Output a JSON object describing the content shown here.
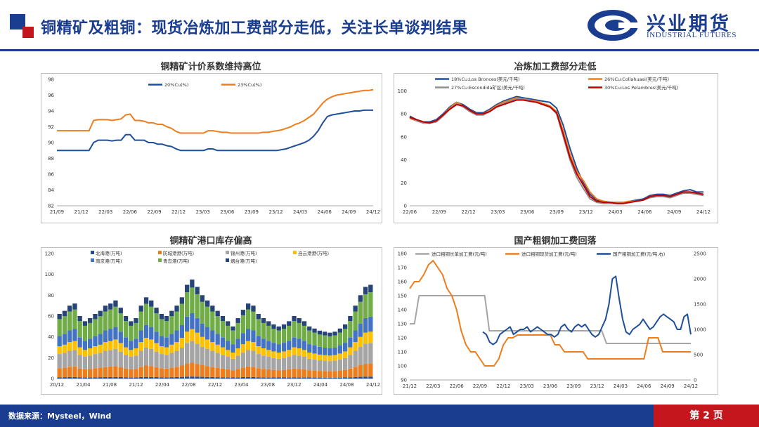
{
  "header": {
    "title": "铜精矿及粗铜：现货冶炼加工费部分走低，关注长单谈判结果",
    "logo_cn": "兴业期货",
    "logo_en": "INDUSTRIAL FUTURES"
  },
  "footer": {
    "source": "数据来源：Mysteel，Wind",
    "page": "第 2 页"
  },
  "colors": {
    "brand_blue": "#1a3d8f",
    "brand_red": "#c4161c"
  },
  "chart_data": [
    {
      "id": "c1",
      "type": "line",
      "title": "铜精矿计价系数维持高位",
      "xlabel": "",
      "ylabel": "",
      "ylim": [
        82,
        98
      ],
      "yticks": [
        82,
        84,
        86,
        88,
        90,
        92,
        94,
        96,
        98
      ],
      "xticks": [
        "21/09",
        "21/12",
        "22/03",
        "22/06",
        "22/09",
        "22/12",
        "23/03",
        "23/06",
        "23/09",
        "23/12",
        "24/03",
        "24/06",
        "24/09",
        "24/12"
      ],
      "legend": "top-center",
      "series": [
        {
          "name": "20%Cu(%)",
          "color": "#1f4e9a",
          "values": [
            89.0,
            89.0,
            89.0,
            89.0,
            89.0,
            89.0,
            89.0,
            89.0,
            90.0,
            90.3,
            90.3,
            90.3,
            90.2,
            90.3,
            90.3,
            91.0,
            91.0,
            90.3,
            90.3,
            90.3,
            90.0,
            90.0,
            89.8,
            89.8,
            89.6,
            89.5,
            89.2,
            89.0,
            89.0,
            89.0,
            89.0,
            89.0,
            89.0,
            89.2,
            89.2,
            89.0,
            89.0,
            89.0,
            89.0,
            89.0,
            89.0,
            89.0,
            89.0,
            89.0,
            89.0,
            89.0,
            89.0,
            89.0,
            89.0,
            89.1,
            89.2,
            89.4,
            89.6,
            89.8,
            90.0,
            90.3,
            90.8,
            91.5,
            92.5,
            93.3,
            93.5,
            93.6,
            93.7,
            93.8,
            93.9,
            94.0,
            94.0,
            94.1,
            94.1,
            94.1
          ]
        },
        {
          "name": "23%Cu(%)",
          "color": "#ee7d1e",
          "values": [
            91.5,
            91.5,
            91.5,
            91.5,
            91.5,
            91.5,
            91.5,
            91.5,
            92.8,
            92.9,
            92.9,
            92.9,
            92.8,
            92.9,
            93.0,
            93.5,
            93.6,
            92.8,
            92.8,
            92.7,
            92.5,
            92.5,
            92.3,
            92.3,
            92.0,
            91.8,
            91.4,
            91.2,
            91.2,
            91.2,
            91.2,
            91.2,
            91.2,
            91.5,
            91.5,
            91.4,
            91.3,
            91.3,
            91.2,
            91.2,
            91.2,
            91.2,
            91.2,
            91.2,
            91.2,
            91.3,
            91.3,
            91.4,
            91.5,
            91.6,
            91.8,
            92.0,
            92.3,
            92.5,
            92.8,
            93.2,
            93.6,
            94.3,
            95.0,
            95.5,
            95.8,
            96.0,
            96.1,
            96.2,
            96.3,
            96.4,
            96.5,
            96.6,
            96.6,
            96.7
          ]
        }
      ]
    },
    {
      "id": "c2",
      "type": "line",
      "title": "冶炼加工费部分走低",
      "xlabel": "",
      "ylabel": "",
      "ylim": [
        0,
        110
      ],
      "yticks": [
        0,
        20,
        40,
        60,
        80,
        100
      ],
      "xticks": [
        "22/06",
        "22/09",
        "22/12",
        "23/03",
        "23/06",
        "23/09",
        "23/12",
        "24/03",
        "24/06",
        "24/09",
        "24/12"
      ],
      "legend": "top",
      "series": [
        {
          "name": "18%Cu:Los Bronces(美元/千吨)",
          "color": "#1f4e9a",
          "values": [
            78,
            75,
            73,
            73,
            75,
            80,
            86,
            90,
            88,
            84,
            81,
            81,
            84,
            88,
            91,
            93,
            95,
            94,
            93,
            92,
            91,
            90,
            85,
            70,
            50,
            33,
            20,
            10,
            5,
            4,
            3,
            3,
            3,
            4,
            5,
            6,
            9,
            10,
            10,
            9,
            11,
            13,
            14,
            12,
            12
          ]
        },
        {
          "name": "26%Cu:Collahuasi(美元/千吨)",
          "color": "#ee7d1e",
          "values": [
            76,
            74,
            73,
            72,
            74,
            79,
            85,
            90,
            87,
            83,
            80,
            80,
            83,
            87,
            90,
            92,
            94,
            93,
            92,
            91,
            89,
            87,
            82,
            65,
            45,
            30,
            22,
            12,
            6,
            4,
            3,
            3,
            3,
            4,
            4,
            5,
            8,
            9,
            9,
            8,
            10,
            12,
            12,
            11,
            10
          ]
        },
        {
          "name": "27%Cu:Escondida矿区(美元/千吨)",
          "color": "#909090",
          "values": [
            77,
            74,
            72,
            72,
            73,
            78,
            84,
            89,
            86,
            82,
            79,
            79,
            82,
            86,
            89,
            91,
            93,
            93,
            92,
            90,
            88,
            86,
            80,
            60,
            40,
            25,
            15,
            6,
            3,
            2,
            2,
            2,
            2,
            3,
            4,
            5,
            7,
            8,
            8,
            7,
            9,
            11,
            11,
            10,
            9
          ]
        },
        {
          "name": "30%Cu:Los Pelambres(美元/千吨)",
          "color": "#c00000",
          "values": [
            77,
            75,
            73,
            72,
            74,
            79,
            84,
            88,
            87,
            83,
            80,
            80,
            82,
            86,
            88,
            90,
            92,
            92,
            91,
            90,
            88,
            86,
            81,
            62,
            42,
            28,
            18,
            8,
            4,
            3,
            3,
            2,
            2,
            3,
            4,
            5,
            8,
            9,
            9,
            8,
            10,
            12,
            12,
            11,
            10
          ]
        }
      ]
    },
    {
      "id": "c3",
      "type": "bar",
      "stacked": true,
      "title": "铜精矿港口库存偏高",
      "xlabel": "",
      "ylabel": "",
      "ylim": [
        0,
        120
      ],
      "yticks": [
        0,
        20,
        40,
        60,
        80,
        100,
        120
      ],
      "xticks": [
        "20/12",
        "21/04",
        "21/08",
        "21/12",
        "22/04",
        "22/08",
        "22/12",
        "23/04",
        "23/08",
        "23/12",
        "24/04",
        "24/08",
        "24/12"
      ],
      "legend": "top",
      "series": [
        {
          "name": "北海港(万吨)",
          "color": "#1f4e9a",
          "values": []
        },
        {
          "name": "防城港港(万吨)",
          "color": "#ee7d1e",
          "values": []
        },
        {
          "name": "锦州港(万吨)",
          "color": "#a5a5a5",
          "values": []
        },
        {
          "name": "连云港港(万吨)",
          "color": "#ffc000",
          "values": []
        },
        {
          "name": "南京港(万吨)",
          "color": "#4472c4",
          "values": []
        },
        {
          "name": "青岛港(万吨)",
          "color": "#70ad47",
          "values": []
        },
        {
          "name": "烟台港(万吨)",
          "color": "#264478",
          "values": []
        }
      ],
      "totals": [
        62,
        65,
        70,
        72,
        60,
        55,
        58,
        62,
        65,
        70,
        72,
        75,
        68,
        60,
        55,
        58,
        70,
        78,
        75,
        68,
        62,
        60,
        65,
        70,
        78,
        90,
        95,
        88,
        80,
        75,
        70,
        65,
        60,
        55,
        50,
        58,
        66,
        72,
        70,
        62,
        58,
        55,
        52,
        50,
        52,
        55,
        60,
        58,
        55,
        50,
        48,
        46,
        45,
        44,
        45,
        48,
        52,
        60,
        70,
        80,
        88,
        90
      ]
    },
    {
      "id": "c4",
      "type": "line",
      "title": "国产粗铜加工费回落",
      "xlabel": "",
      "ylabel": "",
      "ylim": [
        90,
        180
      ],
      "yticks": [
        90,
        100,
        110,
        120,
        130,
        140,
        150,
        160,
        170,
        180
      ],
      "y2lim": [
        0,
        2500
      ],
      "y2ticks": [
        0,
        500,
        1000,
        1500,
        2000,
        2500
      ],
      "xticks": [
        "21/12",
        "22/03",
        "22/06",
        "22/09",
        "22/12",
        "23/03",
        "23/06",
        "23/09",
        "23/12",
        "24/03",
        "24/06",
        "24/09",
        "24/12"
      ],
      "legend": "top",
      "series": [
        {
          "name": "进口粗铜长单加工费(元/吨)",
          "color": "#a5a5a5",
          "axis": "left",
          "values": [
            130,
            130,
            150,
            150,
            150,
            150,
            150,
            150,
            150,
            150,
            150,
            150,
            150,
            150,
            150,
            150,
            150,
            125,
            125,
            125,
            125,
            125,
            125,
            125,
            125,
            125,
            125,
            125,
            125,
            125,
            125,
            125,
            125,
            125,
            125,
            125,
            125,
            125,
            125,
            125,
            125,
            125,
            116,
            116,
            116,
            116,
            116,
            116,
            116,
            116,
            116,
            116,
            116,
            116,
            116,
            116,
            116,
            116,
            116,
            116,
            116
          ]
        },
        {
          "name": "进口粗铜现货加工费(元/吨)",
          "color": "#ee7d1e",
          "axis": "left",
          "values": [
            155,
            160,
            160,
            165,
            172,
            175,
            170,
            165,
            155,
            150,
            140,
            125,
            115,
            110,
            110,
            105,
            100,
            100,
            100,
            105,
            115,
            120,
            120,
            122,
            122,
            122,
            122,
            122,
            122,
            122,
            122,
            115,
            115,
            110,
            110,
            110,
            110,
            110,
            105,
            105,
            105,
            105,
            105,
            105,
            105,
            105,
            105,
            105,
            105,
            105,
            105,
            120,
            120,
            120,
            110,
            110,
            110,
            110,
            110,
            110,
            110
          ]
        },
        {
          "name": "国产粗铜加工费(元/吨,右)",
          "color": "#1f4e9a",
          "axis": "right",
          "values": null
        }
      ]
    }
  ]
}
